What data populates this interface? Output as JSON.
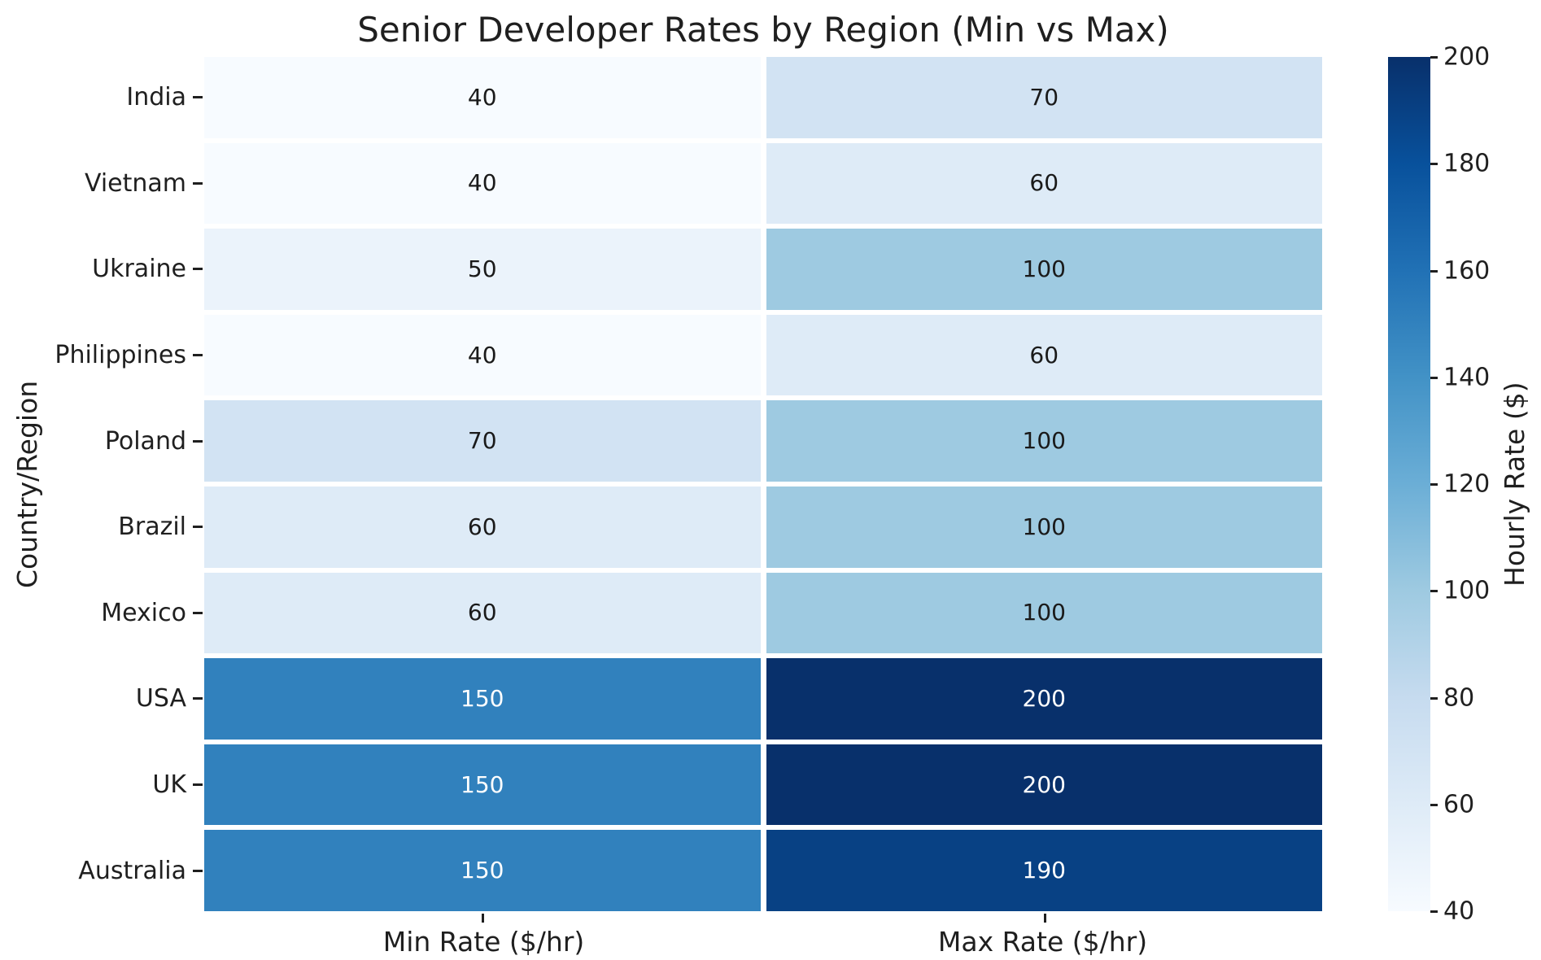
{
  "title": "Senior Developer Rates by Region (Min vs Max)",
  "y_axis": {
    "label": "Country/Region"
  },
  "x_axis": {
    "min_label": "Min Rate ($/hr)",
    "max_label": "Max Rate ($/hr)"
  },
  "colorbar": {
    "label": "Hourly Rate ($)",
    "tick_labels": [
      "200",
      "180",
      "160",
      "140",
      "120",
      "100",
      "80",
      "60",
      "40"
    ],
    "gradient_stops_bottom_to_top": [
      "#f7fbff",
      "#deebf7",
      "#c6dbef",
      "#9ecae1",
      "#6baed6",
      "#4292c6",
      "#2171b5",
      "#08519c",
      "#08306b"
    ]
  },
  "annotation_colors": {
    "dark_text": "#1a1a1a",
    "light_text": "#ffffff"
  },
  "rows": [
    {
      "label": "India",
      "min": {
        "value": "40",
        "bg": "#f7fbff",
        "fg": "#1a1a1a"
      },
      "max": {
        "value": "70",
        "bg": "#d2e3f3",
        "fg": "#1a1a1a"
      }
    },
    {
      "label": "Vietnam",
      "min": {
        "value": "40",
        "bg": "#f7fbff",
        "fg": "#1a1a1a"
      },
      "max": {
        "value": "60",
        "bg": "#deebf7",
        "fg": "#1a1a1a"
      }
    },
    {
      "label": "Ukraine",
      "min": {
        "value": "50",
        "bg": "#ebf3fb",
        "fg": "#1a1a1a"
      },
      "max": {
        "value": "100",
        "bg": "#9ecae1",
        "fg": "#1a1a1a"
      }
    },
    {
      "label": "Philippines",
      "min": {
        "value": "40",
        "bg": "#f7fbff",
        "fg": "#1a1a1a"
      },
      "max": {
        "value": "60",
        "bg": "#deebf7",
        "fg": "#1a1a1a"
      }
    },
    {
      "label": "Poland",
      "min": {
        "value": "70",
        "bg": "#d2e3f3",
        "fg": "#1a1a1a"
      },
      "max": {
        "value": "100",
        "bg": "#9ecae1",
        "fg": "#1a1a1a"
      }
    },
    {
      "label": "Brazil",
      "min": {
        "value": "60",
        "bg": "#deebf7",
        "fg": "#1a1a1a"
      },
      "max": {
        "value": "100",
        "bg": "#9ecae1",
        "fg": "#1a1a1a"
      }
    },
    {
      "label": "Mexico",
      "min": {
        "value": "60",
        "bg": "#deebf7",
        "fg": "#1a1a1a"
      },
      "max": {
        "value": "100",
        "bg": "#9ecae1",
        "fg": "#1a1a1a"
      }
    },
    {
      "label": "USA",
      "min": {
        "value": "150",
        "bg": "#3181bd",
        "fg": "#ffffff"
      },
      "max": {
        "value": "200",
        "bg": "#08306b",
        "fg": "#ffffff"
      }
    },
    {
      "label": "UK",
      "min": {
        "value": "150",
        "bg": "#3181bd",
        "fg": "#ffffff"
      },
      "max": {
        "value": "200",
        "bg": "#08306b",
        "fg": "#ffffff"
      }
    },
    {
      "label": "Australia",
      "min": {
        "value": "150",
        "bg": "#3181bd",
        "fg": "#ffffff"
      },
      "max": {
        "value": "190",
        "bg": "#084184",
        "fg": "#ffffff"
      }
    }
  ],
  "chart_data": {
    "type": "heatmap",
    "title": "Senior Developer Rates by Region (Min vs Max)",
    "ylabel": "Country/Region",
    "categories": [
      "India",
      "Vietnam",
      "Ukraine",
      "Philippines",
      "Poland",
      "Brazil",
      "Mexico",
      "USA",
      "UK",
      "Australia"
    ],
    "columns": [
      "Min Rate ($/hr)",
      "Max Rate ($/hr)"
    ],
    "series": [
      {
        "name": "Min Rate ($/hr)",
        "values": [
          40,
          40,
          50,
          40,
          70,
          60,
          60,
          150,
          150,
          150
        ]
      },
      {
        "name": "Max Rate ($/hr)",
        "values": [
          70,
          60,
          100,
          60,
          100,
          100,
          100,
          200,
          200,
          190
        ]
      }
    ],
    "colormap": "Blues",
    "color_range": [
      40,
      200
    ],
    "colorbar_label": "Hourly Rate ($)",
    "colorbar_ticks": [
      200,
      180,
      160,
      140,
      120,
      100,
      80,
      60,
      40
    ],
    "annotations_shown": true,
    "grid": false,
    "legend": "colorbar-right"
  }
}
